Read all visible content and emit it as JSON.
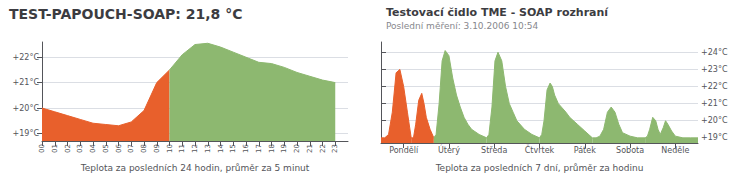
{
  "chart_data": [
    {
      "type": "area",
      "title": "TEST-PAPOUCH-SOAP: 21,8 °C",
      "xlabel": "Teplota za posledních 24 hodin, průměr za 5 minut",
      "xlim": [
        0,
        24
      ],
      "xticks": [
        {
          "value": 0,
          "label": "00"
        },
        {
          "value": 1,
          "label": "01"
        },
        {
          "value": 2,
          "label": "02"
        },
        {
          "value": 3,
          "label": "03"
        },
        {
          "value": 4,
          "label": "04"
        },
        {
          "value": 5,
          "label": "05"
        },
        {
          "value": 6,
          "label": "06"
        },
        {
          "value": 7,
          "label": "07"
        },
        {
          "value": 8,
          "label": "08"
        },
        {
          "value": 9,
          "label": "09"
        },
        10,
        11,
        12,
        13,
        14,
        15,
        16,
        17,
        18,
        19,
        20,
        21,
        22,
        23
      ],
      "ylim": [
        18.7,
        22.6
      ],
      "yticks": [
        {
          "value": 19,
          "label": "+19°C"
        },
        {
          "value": 20,
          "label": "+20°C"
        },
        {
          "value": 21,
          "label": "+21°C"
        },
        {
          "value": 22,
          "label": "+22°C"
        }
      ],
      "grid": true,
      "series": [
        {
          "color": "#E8602C",
          "x": [
            0,
            1,
            2,
            3,
            4,
            5,
            6,
            7,
            8,
            9,
            10
          ],
          "values": [
            20.0,
            19.85,
            19.7,
            19.55,
            19.4,
            19.35,
            19.3,
            19.45,
            19.9,
            21.0,
            21.5
          ]
        },
        {
          "color": "#8DB870",
          "x": [
            10,
            11,
            12,
            13,
            14,
            15,
            16,
            17,
            18,
            19,
            20,
            21,
            22,
            23
          ],
          "values": [
            21.5,
            22.1,
            22.5,
            22.55,
            22.4,
            22.2,
            22.0,
            21.8,
            21.75,
            21.6,
            21.4,
            21.25,
            21.1,
            21.0
          ]
        }
      ]
    },
    {
      "type": "area",
      "title": "Testovací čidlo TME - SOAP rozhraní",
      "subtitle": "Poslední měření: 3.10.2006 10:54",
      "xlabel": "Teplota za posledních 7 dní, průměr za hodinu",
      "xlim": [
        0,
        42
      ],
      "xticks": [
        {
          "value": 3,
          "label": "Pondělí"
        },
        {
          "value": 9,
          "label": "Úterý"
        },
        {
          "value": 15,
          "label": "Středa"
        },
        {
          "value": 21,
          "label": "Čtvrtek"
        },
        {
          "value": 27,
          "label": "Pátek"
        },
        {
          "value": 33,
          "label": "Sobota"
        },
        {
          "value": 39,
          "label": "Neděle"
        }
      ],
      "ylim": [
        18.7,
        24.6
      ],
      "yticks": [
        {
          "value": 19,
          "label": "+19°C"
        },
        {
          "value": 20,
          "label": "+20°C"
        },
        {
          "value": 21,
          "label": "+21°C"
        },
        {
          "value": 22,
          "label": "+22°C"
        },
        {
          "value": 23,
          "label": "+23°C"
        },
        {
          "value": 24,
          "label": "+24°C"
        }
      ],
      "grid": true,
      "series": [
        {
          "color": "#E8602C",
          "x": [
            0.0,
            0.5,
            1.0,
            1.5,
            2.0,
            2.5,
            3.0,
            3.5,
            4.0
          ],
          "values": [
            19.0,
            19.0,
            19.2,
            20.5,
            22.8,
            23.0,
            22.0,
            20.5,
            19.0
          ]
        },
        {
          "color": "#E8602C",
          "x": [
            4.0,
            4.3,
            4.6,
            5.0,
            5.4,
            5.7,
            6.0,
            6.5,
            7.0
          ],
          "values": [
            19.0,
            19.0,
            19.8,
            21.2,
            21.6,
            21.0,
            20.2,
            19.5,
            19.0
          ]
        },
        {
          "color": "#8DB870",
          "x": [
            7.0,
            7.3,
            7.7,
            8.1,
            8.5,
            9.0,
            9.5,
            10.0,
            10.5,
            11.0,
            11.5,
            12.0,
            13.0,
            14.0
          ],
          "values": [
            19.0,
            19.2,
            21.0,
            23.5,
            24.1,
            23.8,
            22.5,
            21.5,
            20.8,
            20.2,
            19.8,
            19.5,
            19.2,
            19.0
          ]
        },
        {
          "color": "#8DB870",
          "x": [
            14.0,
            14.3,
            14.7,
            15.1,
            15.5,
            16.0,
            16.5,
            17.0,
            17.5,
            18.0,
            19.0,
            20.0,
            21.0
          ],
          "values": [
            19.0,
            19.2,
            20.8,
            23.5,
            24.0,
            23.5,
            22.0,
            21.0,
            20.5,
            20.0,
            19.5,
            19.2,
            19.0
          ]
        },
        {
          "color": "#8DB870",
          "x": [
            21.0,
            21.3,
            21.6,
            22.0,
            22.4,
            22.7,
            23.0,
            23.5,
            24.5,
            25.0,
            26.0,
            27.0,
            28.0
          ],
          "values": [
            19.0,
            19.2,
            20.0,
            21.8,
            22.2,
            22.0,
            21.5,
            21.0,
            20.5,
            20.2,
            19.8,
            19.4,
            19.0
          ]
        },
        {
          "color": "#8DB870",
          "x": [
            28.0,
            28.5,
            29.0,
            29.5,
            30.0,
            30.5,
            31.0,
            31.5,
            32.0,
            33.0,
            34.0,
            35.0
          ],
          "values": [
            19.0,
            19.0,
            19.1,
            19.5,
            20.5,
            20.8,
            20.5,
            19.8,
            19.3,
            19.1,
            19.0,
            19.0
          ]
        },
        {
          "color": "#8DB870",
          "x": [
            35.0,
            35.3,
            35.6,
            36.0,
            36.4,
            36.7,
            37.0,
            37.4,
            37.7,
            38.0,
            38.5,
            39.0,
            40.0,
            41.0,
            42.0
          ],
          "values": [
            19.0,
            19.1,
            19.5,
            20.2,
            20.0,
            19.5,
            19.2,
            19.6,
            20.0,
            19.8,
            19.4,
            19.1,
            19.0,
            19.0,
            19.0
          ]
        }
      ]
    }
  ]
}
